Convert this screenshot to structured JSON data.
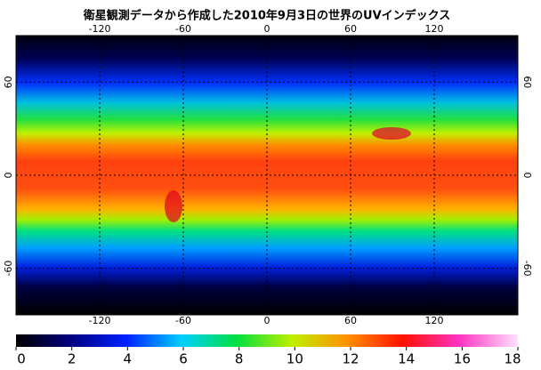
{
  "title": "衛星観測データから作成した2010年9月3日の世界のUVインデックス",
  "map": {
    "lonlim": [
      -180,
      180
    ],
    "latlim": [
      -90,
      90
    ],
    "lon_ticks": [
      -120,
      -60,
      0,
      60,
      120
    ],
    "lat_ticks": [
      60,
      0,
      -60
    ]
  },
  "colorbar": {
    "range": [
      0,
      18
    ],
    "ticks": [
      0,
      2,
      4,
      6,
      8,
      10,
      12,
      14,
      16,
      18
    ]
  }
}
